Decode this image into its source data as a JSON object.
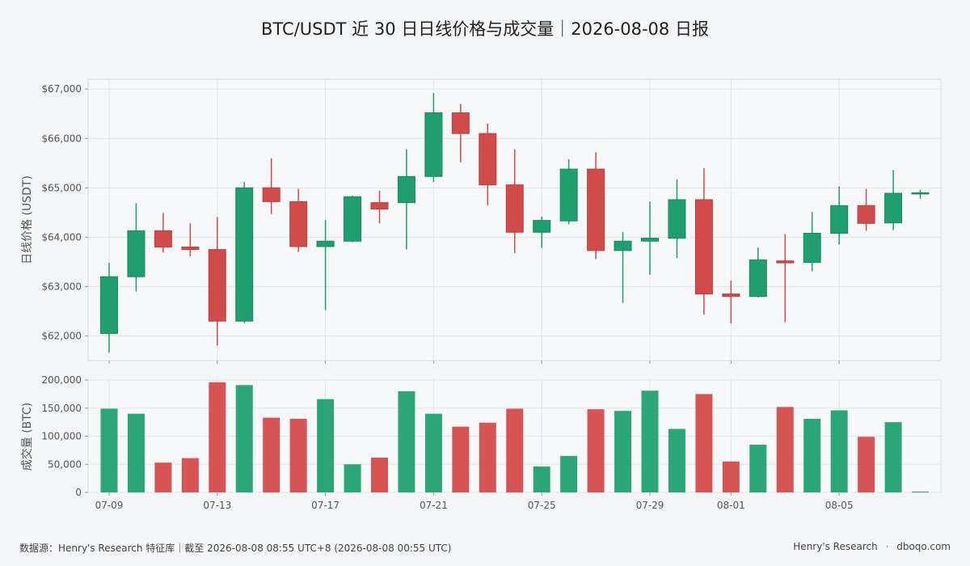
{
  "title": "BTC/USDT 近 30 日日线价格与成交量｜2026-08-08 日报",
  "footer": {
    "source": "数据源：Henry's Research 特征库｜截至 2026-08-08 08:55 UTC+8 (2026-08-08 00:55 UTC)",
    "brand": "Henry's Research",
    "separator": "·",
    "site": "dboqo.com"
  },
  "colors": {
    "up": "#1f9e6f",
    "down": "#d24b4b",
    "volume_up": "#2aa678",
    "volume_down": "#d65454",
    "grid": "#e2e4e8",
    "panel_bg": "#f7f8fa",
    "panel_border": "#d8dade",
    "tick_text": "#555555"
  },
  "chart_data": [
    {
      "type": "candlestick",
      "ylabel": "日线价格 (USDT)",
      "ylim": [
        61500,
        67200
      ],
      "yticks": [
        62000,
        63000,
        64000,
        65000,
        66000,
        67000
      ],
      "ytick_labels": [
        "$62,000",
        "$63,000",
        "$64,000",
        "$65,000",
        "$66,000",
        "$67,000"
      ],
      "grid": true,
      "x": [
        "07-09",
        "07-10",
        "07-11",
        "07-12",
        "07-13",
        "07-14",
        "07-15",
        "07-16",
        "07-17",
        "07-18",
        "07-19",
        "07-20",
        "07-21",
        "07-22",
        "07-23",
        "07-24",
        "07-25",
        "07-26",
        "07-27",
        "07-28",
        "07-29",
        "07-30",
        "07-31",
        "08-01",
        "08-02",
        "08-03",
        "08-04",
        "08-05",
        "08-06",
        "08-07",
        "08-08"
      ],
      "xtick_labels": [
        "07-09",
        "07-13",
        "07-17",
        "07-21",
        "07-25",
        "07-29",
        "08-01",
        "08-05"
      ],
      "open": [
        62050,
        63200,
        64130,
        63800,
        63750,
        62300,
        65000,
        64720,
        63810,
        63920,
        64700,
        64700,
        65230,
        66520,
        66100,
        65060,
        64100,
        64330,
        65380,
        63730,
        63920,
        63980,
        64760,
        62850,
        62800,
        63520,
        63490,
        64080,
        64640,
        64290,
        64890
      ],
      "high": [
        63480,
        64690,
        64490,
        64280,
        64410,
        65120,
        65600,
        64980,
        64350,
        64840,
        64940,
        65780,
        66920,
        66700,
        66300,
        65780,
        64420,
        65580,
        65720,
        64100,
        64720,
        65170,
        65400,
        63120,
        63790,
        64060,
        64510,
        65030,
        64980,
        65360,
        64960
      ],
      "low": [
        61660,
        62900,
        63690,
        63610,
        61810,
        62260,
        64470,
        63700,
        62520,
        63900,
        64280,
        63750,
        65120,
        65520,
        64650,
        63680,
        63780,
        64260,
        63560,
        62670,
        63240,
        63580,
        62430,
        62250,
        62780,
        62280,
        63310,
        63850,
        64130,
        64140,
        64780
      ],
      "close": [
        63200,
        64130,
        63800,
        63750,
        62300,
        65000,
        64720,
        63810,
        63920,
        64820,
        64570,
        65230,
        66520,
        66100,
        65060,
        64100,
        64340,
        65380,
        63730,
        63920,
        63980,
        64760,
        62850,
        62800,
        63540,
        63480,
        64080,
        64640,
        64280,
        64890,
        64900
      ]
    },
    {
      "type": "bar",
      "ylabel": "成交量 (BTC)",
      "ylim": [
        0,
        200000
      ],
      "yticks": [
        0,
        50000,
        100000,
        150000,
        200000
      ],
      "ytick_labels": [
        "0",
        "50,000",
        "100,000",
        "150,000",
        "200,000"
      ],
      "grid": true,
      "categories": [
        "07-09",
        "07-10",
        "07-11",
        "07-12",
        "07-13",
        "07-14",
        "07-15",
        "07-16",
        "07-17",
        "07-18",
        "07-19",
        "07-20",
        "07-21",
        "07-22",
        "07-23",
        "07-24",
        "07-25",
        "07-26",
        "07-27",
        "07-28",
        "07-29",
        "07-30",
        "07-31",
        "08-01",
        "08-02",
        "08-03",
        "08-04",
        "08-05",
        "08-06",
        "08-07",
        "08-08"
      ],
      "values": [
        149000,
        140000,
        53000,
        61000,
        196000,
        191000,
        133000,
        131000,
        166000,
        50000,
        62000,
        180000,
        140000,
        117000,
        124000,
        149000,
        46000,
        65000,
        148000,
        145000,
        181000,
        113000,
        175000,
        55000,
        85000,
        152000,
        131000,
        146000,
        99000,
        125000,
        1500
      ],
      "direction": [
        "up",
        "up",
        "down",
        "down",
        "down",
        "up",
        "down",
        "down",
        "up",
        "up",
        "down",
        "up",
        "up",
        "down",
        "down",
        "down",
        "up",
        "up",
        "down",
        "up",
        "up",
        "up",
        "down",
        "down",
        "up",
        "down",
        "up",
        "up",
        "down",
        "up",
        "up"
      ]
    }
  ]
}
